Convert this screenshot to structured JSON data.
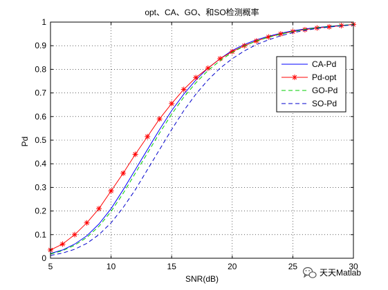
{
  "chart_data": {
    "type": "line",
    "title": "opt、CA、GO、和SO检测概率",
    "xlabel": "SNR(dB)",
    "ylabel": "Pd",
    "xlim": [
      5,
      30
    ],
    "ylim": [
      0,
      1
    ],
    "x_ticks": [
      "5",
      "10",
      "15",
      "20",
      "25",
      "30"
    ],
    "y_ticks": [
      "0",
      "0.1",
      "0.2",
      "0.3",
      "0.4",
      "0.5",
      "0.6",
      "0.7",
      "0.8",
      "0.9",
      "1"
    ],
    "grid": true,
    "legend_position": "top-right",
    "x": [
      5,
      6,
      7,
      8,
      9,
      10,
      11,
      12,
      13,
      14,
      15,
      16,
      17,
      18,
      19,
      20,
      21,
      22,
      23,
      24,
      25,
      26,
      27,
      28,
      29,
      30
    ],
    "series": [
      {
        "name": "CA-Pd",
        "color": "#0000ff",
        "line_style": "solid",
        "marker": "none",
        "values": [
          0.02,
          0.035,
          0.06,
          0.095,
          0.145,
          0.21,
          0.29,
          0.375,
          0.46,
          0.545,
          0.625,
          0.695,
          0.755,
          0.805,
          0.845,
          0.88,
          0.905,
          0.925,
          0.94,
          0.953,
          0.963,
          0.971,
          0.977,
          0.982,
          0.986,
          0.99
        ]
      },
      {
        "name": "Pd-opt",
        "color": "#ff0000",
        "line_style": "solid",
        "marker": "star",
        "values": [
          0.035,
          0.06,
          0.1,
          0.15,
          0.21,
          0.285,
          0.36,
          0.44,
          0.515,
          0.59,
          0.655,
          0.715,
          0.765,
          0.805,
          0.845,
          0.875,
          0.9,
          0.92,
          0.937,
          0.95,
          0.96,
          0.968,
          0.975,
          0.98,
          0.985,
          0.99
        ]
      },
      {
        "name": "GO-Pd",
        "color": "#00cc00",
        "line_style": "dashed",
        "marker": "none",
        "values": [
          0.018,
          0.032,
          0.055,
          0.088,
          0.135,
          0.198,
          0.275,
          0.36,
          0.445,
          0.53,
          0.61,
          0.682,
          0.743,
          0.795,
          0.837,
          0.872,
          0.899,
          0.92,
          0.936,
          0.949,
          0.96,
          0.969,
          0.976,
          0.981,
          0.986,
          0.99
        ]
      },
      {
        "name": "SO-Pd",
        "color": "#0000cc",
        "line_style": "dashed",
        "marker": "none",
        "values": [
          0.012,
          0.022,
          0.038,
          0.063,
          0.1,
          0.15,
          0.215,
          0.29,
          0.375,
          0.46,
          0.545,
          0.625,
          0.695,
          0.755,
          0.805,
          0.845,
          0.878,
          0.905,
          0.925,
          0.942,
          0.955,
          0.965,
          0.973,
          0.979,
          0.984,
          0.988
        ]
      }
    ]
  },
  "watermark": {
    "text": "天天Matlab",
    "icon": "wechat-icon"
  }
}
